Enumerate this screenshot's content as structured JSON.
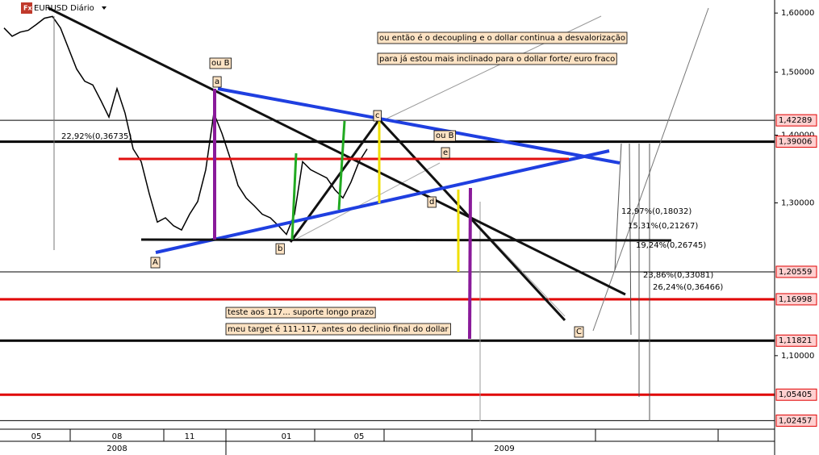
{
  "chart_data": {
    "type": "line",
    "title": "EURUSD Diário",
    "log": true,
    "ylim": [
      1.015,
      1.623
    ],
    "yticks": [
      {
        "value": 1.6,
        "label": "1,60000"
      },
      {
        "value": 1.5,
        "label": "1,50000"
      },
      {
        "value": 1.4,
        "label": "1,40000"
      },
      {
        "value": 1.3,
        "label": "1,30000"
      },
      {
        "value": 1.1,
        "label": "1,10000"
      }
    ],
    "levels": [
      {
        "value": 1.42289,
        "label": "1,42289",
        "color": "#000000"
      },
      {
        "value": 1.39006,
        "label": "1,39006",
        "color": "#000000"
      },
      {
        "value": 1.20559,
        "label": "1,20559",
        "color": "#000000"
      },
      {
        "value": 1.16998,
        "label": "1,16998",
        "color": "#e00000"
      },
      {
        "value": 1.11821,
        "label": "1,11821",
        "color": "#000000"
      },
      {
        "value": 1.05405,
        "label": "1,05405",
        "color": "#e00000"
      },
      {
        "value": 1.02457,
        "label": "1,02457",
        "color": "#000000"
      }
    ],
    "categories": [
      null,
      null,
      null,
      null,
      "05",
      null,
      null,
      null,
      null,
      null,
      null,
      null,
      null,
      null,
      "08",
      null,
      null,
      null,
      null,
      null,
      null,
      null,
      null,
      "11",
      null,
      null,
      null,
      null,
      null,
      null,
      null,
      null,
      null,
      null,
      null,
      "01",
      null,
      null,
      null,
      null,
      null,
      null,
      null,
      null,
      "05",
      null,
      null,
      null,
      null,
      null,
      null,
      null,
      null,
      null,
      null,
      null,
      null,
      null,
      null,
      null,
      null,
      null,
      null,
      null,
      null,
      null,
      null,
      null,
      null,
      null,
      null,
      null,
      null,
      null,
      null,
      null,
      null,
      null,
      null,
      null,
      null,
      null,
      null,
      null,
      null,
      null,
      null,
      null,
      null,
      null,
      null,
      null,
      null,
      null,
      null,
      null
    ],
    "years": [
      null,
      null,
      null,
      null,
      null,
      null,
      null,
      null,
      null,
      null,
      null,
      null,
      null,
      null,
      "2008",
      null,
      null,
      null,
      null,
      null,
      null,
      null,
      null,
      null,
      null,
      null,
      null,
      null,
      null,
      null,
      null,
      null,
      null,
      null,
      null,
      null,
      null,
      null,
      null,
      null,
      null,
      null,
      null,
      null,
      null,
      null,
      null,
      null,
      null,
      null,
      null,
      null,
      null,
      null,
      null,
      null,
      null,
      null,
      null,
      null,
      null,
      null,
      "2009",
      null,
      null,
      null,
      null,
      null,
      null,
      null,
      null,
      null,
      null,
      null,
      null,
      null,
      null,
      null,
      null,
      null,
      null,
      null,
      null,
      null,
      null,
      null,
      null,
      null,
      null,
      null,
      null,
      null,
      null,
      null,
      null,
      null
    ],
    "series": [
      {
        "name": "EURUSD",
        "color": "#000000",
        "values": [
          1.574,
          1.56,
          1.567,
          1.57,
          1.58,
          1.591,
          1.594,
          1.574,
          1.539,
          1.505,
          1.485,
          1.479,
          1.454,
          1.428,
          1.473,
          1.434,
          1.379,
          1.36,
          1.313,
          1.273,
          1.279,
          1.268,
          1.262,
          1.284,
          1.302,
          1.348,
          1.434,
          1.403,
          1.366,
          1.325,
          1.307,
          1.296,
          1.284,
          1.279,
          1.268,
          1.256,
          1.284,
          1.36,
          1.348,
          1.342,
          1.336,
          1.319,
          1.307,
          1.33,
          1.36,
          1.379,
          null,
          null,
          null,
          null,
          null,
          null,
          null,
          null,
          null,
          null,
          null,
          null,
          null,
          null,
          null,
          null,
          null,
          null,
          null,
          null,
          null,
          null,
          null,
          null,
          null,
          null,
          null,
          null,
          null,
          null,
          null,
          null,
          null,
          null,
          null,
          null,
          null,
          null,
          null,
          null,
          null,
          null,
          null,
          null,
          null,
          null,
          null,
          null,
          null,
          null
        ]
      }
    ],
    "annotations": {
      "ou_b_1": "ou B",
      "ou_b_2": "ou B",
      "a": "a",
      "b": "b",
      "c": "c",
      "d": "d",
      "e": "e",
      "A": "A",
      "C": "C",
      "note1": "ou então é o decoupling e o dollar continua a desvalorização",
      "note2": "para já estou mais inclinado para o dollar forte/  euro fraco",
      "note3": "teste aos 117... suporte longo prazo",
      "note4": "meu target é 111-117, antes do declinio final do dollar",
      "fib1": "22,92%(0,36735)",
      "fib2": "12,97%(0,18032)",
      "fib3": "15,31%(0,21267)",
      "fib4": "19,24%(0,26745)",
      "fib5": "23,86%(0,33081)",
      "fib6": "26,24%(0,36466)"
    }
  }
}
